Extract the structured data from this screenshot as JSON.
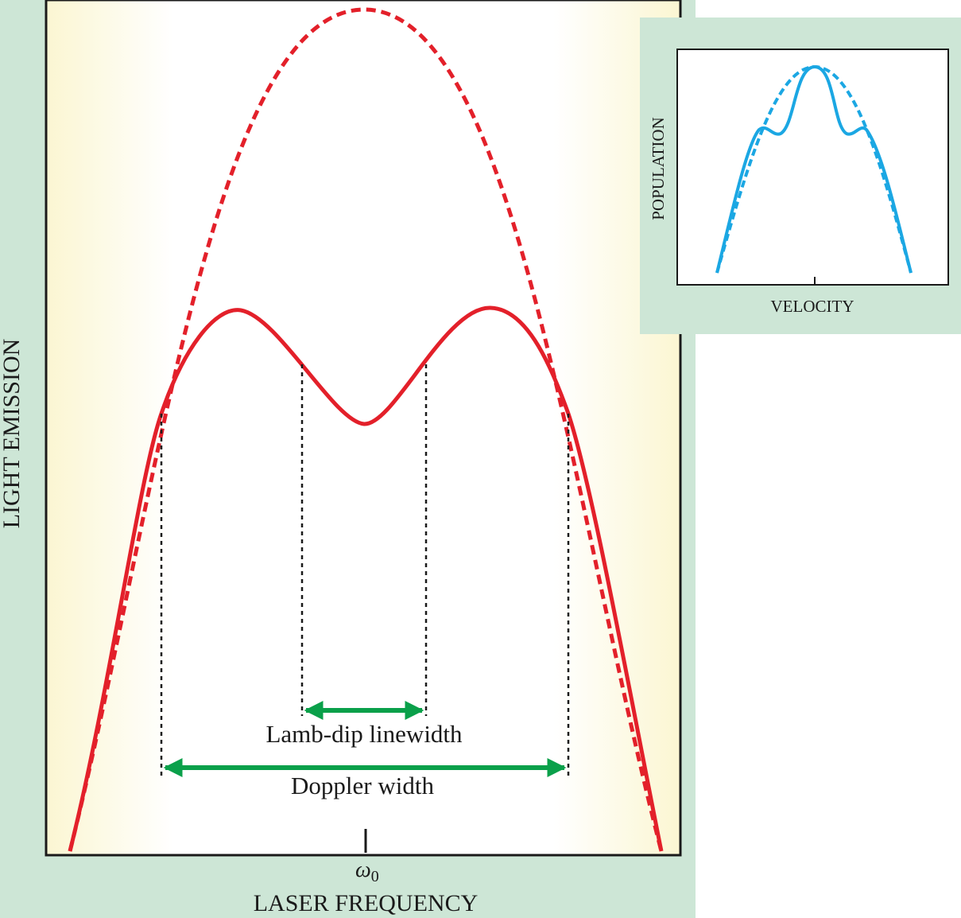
{
  "main": {
    "y_label": "LIGHT EMISSION",
    "x_label": "LASER FREQUENCY",
    "tick_symbol": "ω",
    "tick_subscript": "0",
    "annotations": [
      "Lamb-dip linewidth",
      "Doppler width"
    ]
  },
  "inset": {
    "y_label": "POPULATION",
    "x_label": "VELOCITY"
  }
}
